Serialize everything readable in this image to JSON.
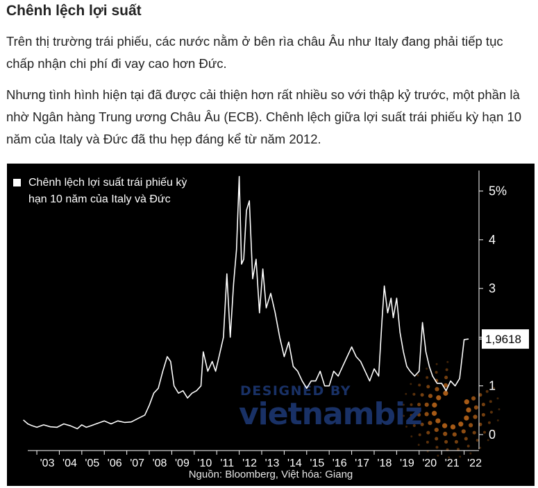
{
  "article": {
    "heading": "Chênh lệch lợi suất",
    "paragraph_1": "Trên thị trường trái phiếu, các nước nằm ở bên rìa châu Âu như Italy đang phải tiếp tục chấp nhận chi phí đi vay cao hơn Đức.",
    "paragraph_2": "Nhưng tình hình hiện tại đã được cải thiện hơn rất nhiều so với thập kỷ trước, một phần là nhờ Ngân hàng Trung ương Châu Âu (ECB). Chênh lệch giữa lợi suất trái phiếu kỳ hạn 10 năm của Italy và Đức đã thu hẹp đáng kể từ năm 2012."
  },
  "chart_data": {
    "type": "line",
    "legend": {
      "line_1": "Chênh lệch lợi suất trái phiếu kỳ",
      "line_2": "hạn 10 năm của Italy và Đức",
      "placement": "top-left"
    },
    "y_tick_labels": [
      "0",
      "1",
      "2",
      "3",
      "4",
      "5%"
    ],
    "y_ticks": [
      0,
      1,
      2,
      3,
      4,
      5
    ],
    "ylim": [
      -0.3,
      5.45
    ],
    "x_tick_labels": [
      "'03",
      "'04",
      "'05",
      "'06",
      "'07",
      "'08",
      "'09",
      "'10",
      "'11",
      "'12",
      "'13",
      "'14",
      "'15",
      "'16",
      "'17",
      "'18",
      "'19",
      "'20",
      "'21",
      "'22"
    ],
    "x_ticks": [
      2003,
      2004,
      2005,
      2006,
      2007,
      2008,
      2009,
      2010,
      2011,
      2012,
      2013,
      2014,
      2015,
      2016,
      2017,
      2018,
      2019,
      2020,
      2021,
      2022
    ],
    "xlim": [
      2002.35,
      2022.6
    ],
    "last_value_label": "1,9618",
    "last_value": 1.9618,
    "source": "Nguồn: Bloomberg, Việt hóa: Giang",
    "watermark": {
      "line_1": "DESIGNED BY",
      "line_2": "vietnambiz"
    },
    "colors": {
      "background": "#000000",
      "line": "#ffffff",
      "watermark_blue": "#1e3a78",
      "watermark_orange": "#e07a1e"
    },
    "series": [
      {
        "x": [
          2002.4,
          2002.6,
          2002.8,
          2003.0,
          2003.3,
          2003.6,
          2003.9,
          2004.2,
          2004.5,
          2004.8,
          2005.0,
          2005.2,
          2005.4,
          2005.7,
          2006.0,
          2006.3,
          2006.6,
          2006.9,
          2007.2,
          2007.5,
          2007.8,
          2008.0,
          2008.2,
          2008.4,
          2008.6,
          2008.8,
          2008.95,
          2009.1,
          2009.3,
          2009.5,
          2009.7,
          2009.9,
          2010.1,
          2010.3,
          2010.4,
          2010.6,
          2010.8,
          2010.95,
          2011.1,
          2011.3,
          2011.45,
          2011.6,
          2011.75,
          2011.88,
          2012.0,
          2012.1,
          2012.2,
          2012.32,
          2012.45,
          2012.6,
          2012.75,
          2012.9,
          2013.05,
          2013.2,
          2013.4,
          2013.6,
          2013.8,
          2014.0,
          2014.2,
          2014.4,
          2014.6,
          2014.8,
          2015.0,
          2015.2,
          2015.4,
          2015.6,
          2015.8,
          2016.0,
          2016.2,
          2016.4,
          2016.6,
          2016.8,
          2017.0,
          2017.2,
          2017.4,
          2017.6,
          2017.8,
          2018.0,
          2018.2,
          2018.35,
          2018.45,
          2018.6,
          2018.75,
          2018.85,
          2019.0,
          2019.15,
          2019.3,
          2019.45,
          2019.6,
          2019.8,
          2020.0,
          2020.15,
          2020.3,
          2020.45,
          2020.6,
          2020.8,
          2021.0,
          2021.2,
          2021.4,
          2021.6,
          2021.8,
          2022.0,
          2022.2
        ],
        "values": [
          0.3,
          0.22,
          0.18,
          0.15,
          0.2,
          0.16,
          0.15,
          0.22,
          0.18,
          0.12,
          0.2,
          0.15,
          0.18,
          0.23,
          0.28,
          0.22,
          0.28,
          0.25,
          0.26,
          0.33,
          0.4,
          0.6,
          0.85,
          0.95,
          1.3,
          1.6,
          1.5,
          1.0,
          0.85,
          0.9,
          0.75,
          0.85,
          0.9,
          1.0,
          1.7,
          1.3,
          1.5,
          1.3,
          1.6,
          2.0,
          3.3,
          2.0,
          3.1,
          3.8,
          5.3,
          3.5,
          3.6,
          4.6,
          4.8,
          3.2,
          3.6,
          2.5,
          3.4,
          2.6,
          2.9,
          2.5,
          2.0,
          1.6,
          1.9,
          1.4,
          1.3,
          1.1,
          0.95,
          1.1,
          1.1,
          1.3,
          1.0,
          1.0,
          1.3,
          1.2,
          1.4,
          1.6,
          1.8,
          1.6,
          1.5,
          1.3,
          1.1,
          1.35,
          1.2,
          2.35,
          3.05,
          2.5,
          2.8,
          2.4,
          2.8,
          2.1,
          1.7,
          1.4,
          1.3,
          1.2,
          1.3,
          2.3,
          1.7,
          1.4,
          1.2,
          1.05,
          1.05,
          0.9,
          1.1,
          1.0,
          1.15,
          1.95,
          1.9618
        ]
      }
    ]
  }
}
